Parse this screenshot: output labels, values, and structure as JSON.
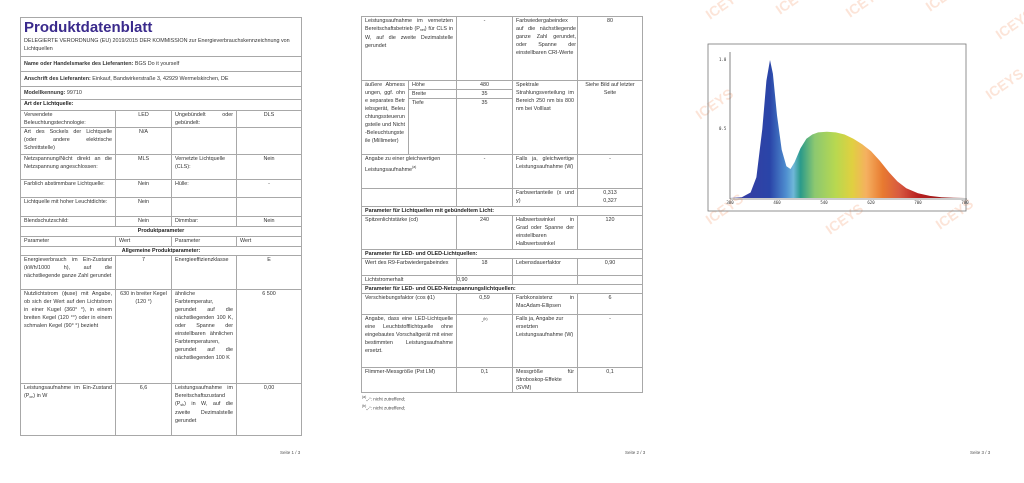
{
  "page1": {
    "title": "Produktdatenblatt",
    "regulation": "DELEGIERTE VERORDNUNG (EU) 2019/2015 DER KOMMISSION zur Energieverbrauchskennzeichnung von Lichtquellen",
    "supplier_name_label": "Name oder Handelsmarke des Lieferanten:",
    "supplier_name_value": "BGS Do it yourself",
    "address_label": "Anschrift des Lieferanten:",
    "address_value": "Einkauf, Bandwirkerstraße 3, 42929 Wermelskirchen, DE",
    "model_label": "Modellkennung:",
    "model_value": "99710",
    "light_type_heading": "Art der Lichtquelle:",
    "type_rows": [
      [
        "Verwendete Beleuchtungstechnologie:",
        "LED",
        "Ungebündelt oder gebündelt:",
        "DLS"
      ],
      [
        "Art des Sockels der Lichtquelle (oder andere elektrische Schnittstelle)",
        "N/A",
        "",
        ""
      ],
      [
        "Netzspannung/Nicht direkt an die Netzspannung angeschlossen:",
        "MLS",
        "Vernetzte Lichtquelle (CLS):",
        "Nein"
      ],
      [
        "Farblich abstimmbare Lichtquelle:",
        "Nein",
        "Hülle:",
        "-"
      ],
      [
        "Lichtquelle mit hoher Leuchtdichte:",
        "Nein",
        "",
        ""
      ],
      [
        "Blendschutzschild:",
        "Nein",
        "Dimmbar:",
        "Nein"
      ]
    ],
    "product_params_heading": "Produktparameter",
    "column_headers": [
      "Parameter",
      "Wert",
      "Parameter",
      "Wert"
    ],
    "general_heading": "Allgemeine Produktparameter:",
    "energy_row": [
      "Energieverbrauch im Ein-Zustand (kWh/1000 h), auf die nächstliegende ganze Zahl gerundet",
      "7",
      "Energieeffizienzklasse",
      "E"
    ],
    "flux_row": [
      "Nutzlichtstrom (ɸuse) mit Angabe, ob sich der Wert auf den Lichtstrom in einer Kugel (360° °), in einem breiten Kegel (120 °°) oder in einem schmalen Kegel (90° °) bezieht",
      "630 in breiter Kegel (120 °)",
      "ähnliche Farbtemperatur, gerundet auf die nächstliegenden 100 K, oder Spanne der einstellbaren ähnlichen Farbtemperaturen, gerundet auf die nächstliegenden 100 K",
      "6 500"
    ],
    "power_row": {
      "label_pre": "Leistungsaufnahme im Ein-Zustand (P",
      "label_sub": "on",
      "label_post": ") in W",
      "value": "6,6",
      "label2_pre": "Leistungsaufnahme im Bereitschaftszustand (P",
      "label2_sub": "sb",
      "label2_post": ") in W, auf die zweite Dezimalstelle gerundet",
      "value2": "0,00"
    },
    "footer": "Seite 1 / 3"
  },
  "page2": {
    "net_standby_row": {
      "label_pre": "Leistungsaufnahme im vernetzten Bereitschaftsbetrieb (P",
      "label_sub": "net",
      "label_post": ") für CLS in W, auf die zweite Dezimalstelle gerundet",
      "value": "-",
      "label2": "Farbwiedergabeindex auf die nächstliegende ganze Zahl gerundet, oder Spanne der einstellbaren CRI-Werte",
      "value2": "80"
    },
    "dimensions": {
      "label": "äußere Abmessungen, ggf. ohne separates Betriebsgerät, Beleuchtungssteuerungsteile und Nicht-Beleuchtungsteile (Millimeter)",
      "items": [
        {
          "name": "Höhe",
          "value": "480"
        },
        {
          "name": "Breite",
          "value": "35"
        },
        {
          "name": "Tiefe",
          "value": "35"
        }
      ],
      "label2": "Spektrale Strahlungsverteilung im Bereich 250 nm bis 800 nm bei Volllast",
      "value2": "Siehe Bild auf letzter Seite"
    },
    "equivalent_row": {
      "label": "Angabe zu einer gleichwertigen Leistungsaufnahme",
      "label_sup": "(a)",
      "value": "-",
      "label2": "Falls ja, gleichwertige Leistungsaufnahme (W)",
      "value2": "-"
    },
    "chromaticity_row": {
      "label2": "Farbwertanteile (x und y)",
      "value_x": "0,313",
      "value_y": "0,327"
    },
    "directional_heading": "Parameter für Lichtquellen mit gebündeltem Licht:",
    "peak_row": [
      "Spitzenlichtstärke (cd)",
      "240",
      "Halbwertswinkel in Grad oder Spanne der einstellbaren Halbwertswinkel",
      "120"
    ],
    "led_heading": "Parameter für LED- und OLED-Lichtquellen:",
    "r9_row": [
      "Wert des R9-Farbwiedergabeindex",
      "18",
      "Lebensdauerfaktor",
      "0,90"
    ],
    "maintenance_row": [
      "Lichtstromerhalt",
      "0,90"
    ],
    "mains_heading": "Parameter für LED- und OLED-Netzspannungslichtquellen:",
    "displacement_row": [
      "Verschiebungsfaktor (cos ϕ1)",
      "0,59",
      "Farbkonsistenz in MacAdam-Ellipsen",
      "6"
    ],
    "replacement_row": {
      "label": "Angabe, dass eine LED-Lichtquelle eine Leuchtstofflichtquelle ohne eingebautes Vorschaltgerät mit einer bestimmten Leistungsaufnahme ersetzt.",
      "value": "-",
      "value_sup": "(b)",
      "label2": "Falls ja, Angabe zur ersetzten Leistungsaufnahme (W)",
      "value2": "-"
    },
    "flicker_row": [
      "Flimmer-Messgröße (Pst LM)",
      "0,1",
      "Messgröße für Stroboskop-Effekte (SVM)",
      "0,1"
    ],
    "footnotes": [
      {
        "mark": "(a)",
        "text": "„-“: nicht zutreffend;"
      },
      {
        "mark": "(b)",
        "text": "„-“: nicht zutreffend;"
      }
    ],
    "footer": "Seite 2 / 3"
  },
  "page3": {
    "watermark": "ICEYS",
    "footer": "Seite 3 / 3"
  },
  "chart_data": {
    "type": "area",
    "title": "",
    "xlabel": "",
    "ylabel": "",
    "x_ticks": [
      "380",
      "460",
      "540",
      "620",
      "700",
      "780"
    ],
    "y_ticks": [
      "0.5",
      "1.0"
    ],
    "xlim": [
      380,
      780
    ],
    "ylim": [
      0,
      1.0
    ],
    "grid": false,
    "fill": "visible-spectrum colors",
    "x": [
      380,
      400,
      415,
      425,
      435,
      442,
      448,
      453,
      460,
      468,
      476,
      483,
      490,
      500,
      510,
      520,
      530,
      545,
      560,
      575,
      590,
      605,
      620,
      635,
      650,
      665,
      680,
      700,
      720,
      740,
      760,
      780
    ],
    "y": [
      0,
      0.005,
      0.04,
      0.15,
      0.5,
      0.85,
      1.0,
      0.9,
      0.6,
      0.35,
      0.23,
      0.21,
      0.26,
      0.36,
      0.43,
      0.46,
      0.475,
      0.48,
      0.475,
      0.46,
      0.43,
      0.39,
      0.34,
      0.27,
      0.19,
      0.12,
      0.07,
      0.035,
      0.015,
      0.006,
      0.002,
      0
    ]
  }
}
